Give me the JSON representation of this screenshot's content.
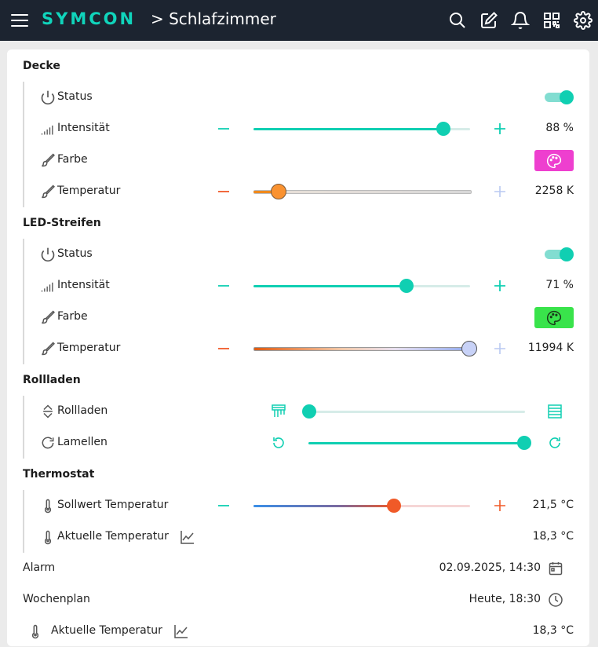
{
  "app": {
    "logo": "SYMCON",
    "breadcrumb": "> Schlafzimmer"
  },
  "topbar": {
    "icons": [
      "search-icon",
      "edit-icon",
      "bell-icon",
      "qr-code-icon",
      "gear-icon"
    ]
  },
  "sections": {
    "decke": {
      "title": "Decke",
      "status": {
        "label": "Status",
        "on": true
      },
      "intensity": {
        "label": "Intensität",
        "value": "88 %",
        "level": 0.88
      },
      "color": {
        "label": "Farbe",
        "swatch": "#ee3fcf"
      },
      "temperature": {
        "label": "Temperatur",
        "value": "2258 K",
        "level": 0.12
      }
    },
    "led": {
      "title": "LED-Streifen",
      "status": {
        "label": "Status",
        "on": true
      },
      "intensity": {
        "label": "Intensität",
        "value": "71 %",
        "level": 0.71
      },
      "color": {
        "label": "Farbe",
        "swatch": "#39e34b"
      },
      "temperature": {
        "label": "Temperatur",
        "value": "11994 K",
        "level": 0.99
      }
    },
    "rollladen": {
      "title": "Rollladen",
      "shutter": {
        "label": "Rollladen",
        "level": 0.0
      },
      "slats": {
        "label": "Lamellen",
        "level": 1.0
      }
    },
    "thermostat": {
      "title": "Thermostat",
      "setpoint": {
        "label": "Sollwert Temperatur",
        "value": "21,5 °C",
        "level": 0.65
      },
      "current": {
        "label": "Aktuelle Temperatur",
        "value": "18,3 °C"
      }
    }
  },
  "alarm": {
    "label": "Alarm",
    "value": "02.09.2025, 14:30"
  },
  "schedule": {
    "label": "Wochenplan",
    "value": "Heute, 18:30"
  },
  "bottom_row": {
    "label": "Aktuelle Temperatur",
    "value": "18,3 °C"
  },
  "colors": {
    "accent": "#10cfb2",
    "topbar": "#1c2430",
    "minus_warm": "#f05a28",
    "plus_light": "#b9c9f2"
  }
}
